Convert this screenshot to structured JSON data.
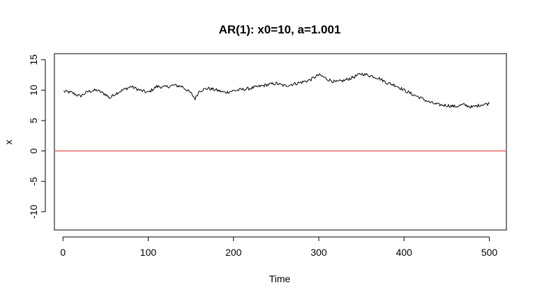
{
  "chart_data": {
    "type": "line",
    "title": "AR(1): x0=10, a=1.001",
    "xlabel": "Time",
    "ylabel": "x",
    "xlim": [
      -10,
      520
    ],
    "ylim": [
      -13,
      16
    ],
    "x_ticks": [
      0,
      100,
      200,
      300,
      400,
      500
    ],
    "y_ticks": [
      -10,
      -5,
      0,
      5,
      10,
      15
    ],
    "grid": false,
    "hline": {
      "y": 0,
      "color": "#d62728"
    },
    "series": [
      {
        "color": "#000000",
        "x": [
          1,
          10,
          20,
          30,
          40,
          50,
          55,
          60,
          70,
          80,
          90,
          100,
          110,
          120,
          130,
          140,
          150,
          155,
          160,
          170,
          180,
          190,
          200,
          210,
          220,
          230,
          240,
          250,
          260,
          270,
          280,
          290,
          300,
          305,
          310,
          320,
          330,
          340,
          350,
          360,
          370,
          380,
          390,
          400,
          410,
          420,
          430,
          440,
          450,
          460,
          470,
          480,
          490,
          500
        ],
        "y": [
          9.8,
          9.6,
          9.0,
          9.8,
          10.0,
          9.3,
          8.7,
          9.3,
          10.0,
          10.6,
          10.0,
          9.6,
          10.6,
          10.5,
          10.8,
          10.6,
          9.5,
          8.6,
          9.9,
          10.3,
          10.0,
          9.6,
          9.9,
          10.1,
          10.3,
          10.6,
          10.9,
          11.1,
          10.7,
          11.0,
          11.3,
          11.7,
          12.5,
          12.2,
          11.8,
          11.3,
          11.6,
          12.1,
          12.7,
          12.4,
          12.0,
          11.2,
          10.8,
          10.0,
          9.3,
          8.7,
          8.0,
          7.6,
          7.5,
          7.3,
          7.6,
          7.2,
          7.6,
          7.8
        ]
      }
    ]
  }
}
